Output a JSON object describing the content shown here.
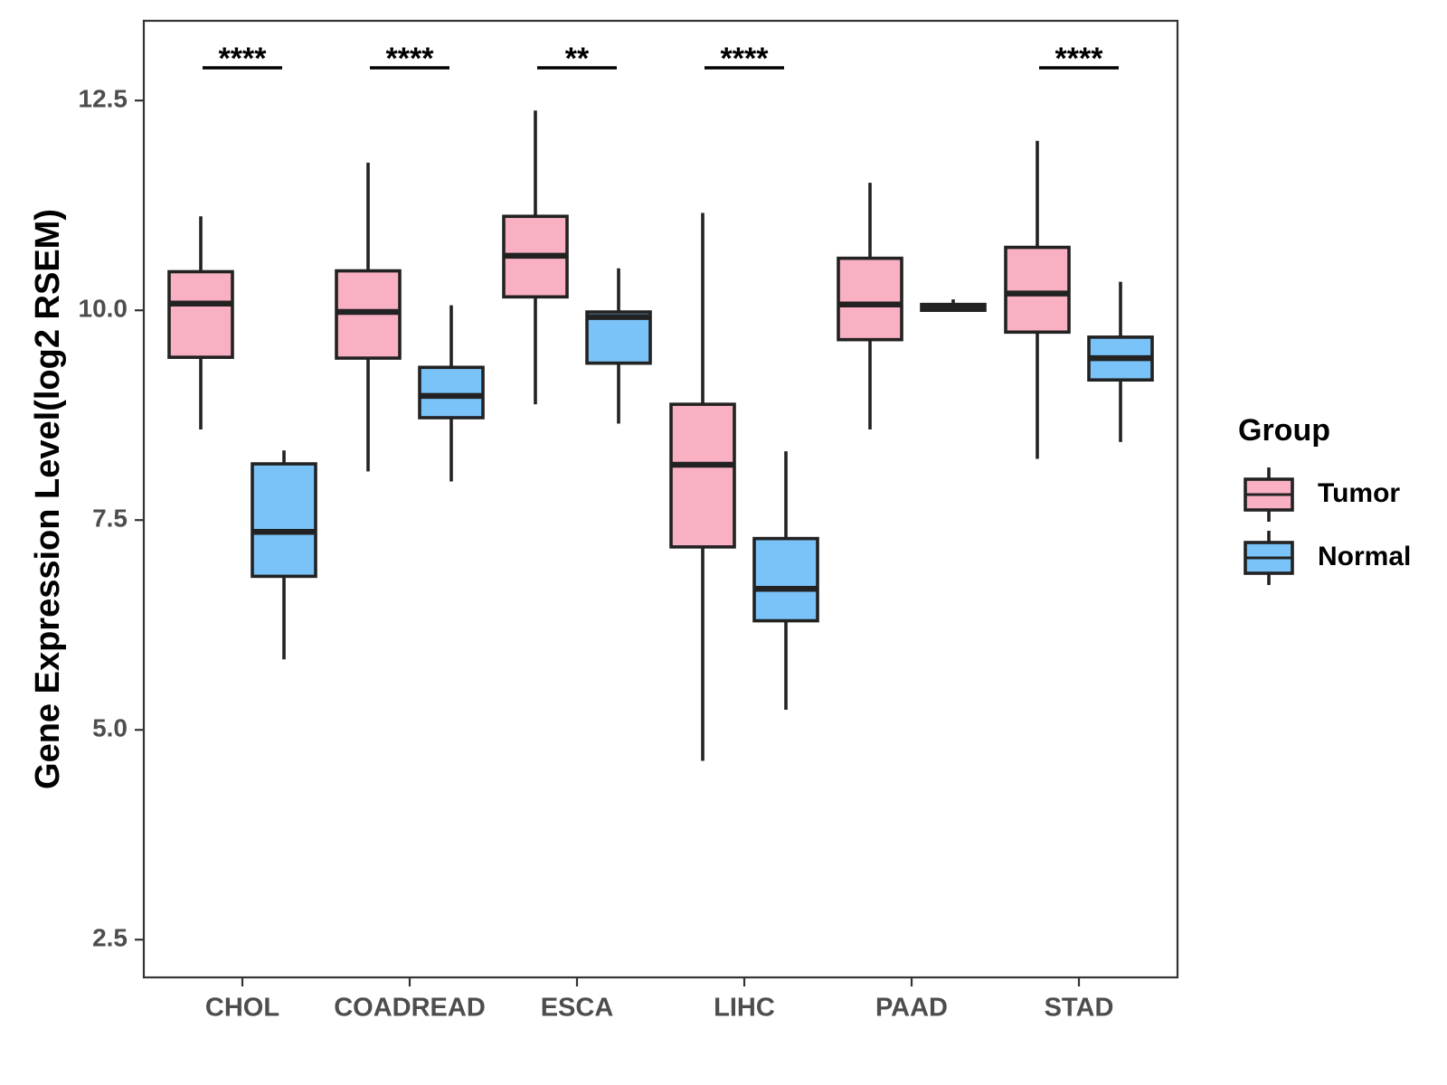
{
  "chart_data": {
    "type": "boxplot",
    "title": "",
    "xlabel": "",
    "ylabel": "Gene Expression Level(log2 RSEM)",
    "ylim": [
      2.05,
      13.45
    ],
    "yticks": [
      2.5,
      5.0,
      7.5,
      10.0,
      12.5
    ],
    "ytick_labels": [
      "2.5",
      "5.0",
      "7.5",
      "10.0",
      "12.5"
    ],
    "categories": [
      "CHOL",
      "COADREAD",
      "ESCA",
      "LIHC",
      "PAAD",
      "STAD"
    ],
    "series": [
      {
        "name": "Tumor",
        "color": "#f9b0c3",
        "boxes": [
          {
            "min": 8.58,
            "q1": 9.44,
            "median": 10.08,
            "q3": 10.46,
            "max": 11.12
          },
          {
            "min": 8.08,
            "q1": 9.43,
            "median": 9.98,
            "q3": 10.47,
            "max": 11.76
          },
          {
            "min": 8.88,
            "q1": 10.16,
            "median": 10.65,
            "q3": 11.12,
            "max": 12.38
          },
          {
            "min": 4.63,
            "q1": 7.18,
            "median": 8.16,
            "q3": 8.88,
            "max": 11.16
          },
          {
            "min": 8.58,
            "q1": 9.65,
            "median": 10.07,
            "q3": 10.62,
            "max": 11.52
          },
          {
            "min": 8.23,
            "q1": 9.74,
            "median": 10.2,
            "q3": 10.75,
            "max": 12.02
          }
        ]
      },
      {
        "name": "Normal",
        "color": "#7ac3f8",
        "boxes": [
          {
            "min": 5.84,
            "q1": 6.83,
            "median": 7.36,
            "q3": 8.17,
            "max": 8.33
          },
          {
            "min": 7.96,
            "q1": 8.72,
            "median": 8.98,
            "q3": 9.32,
            "max": 10.06
          },
          {
            "min": 8.65,
            "q1": 9.37,
            "median": 9.92,
            "q3": 9.98,
            "max": 10.5
          },
          {
            "min": 5.24,
            "q1": 6.3,
            "median": 6.68,
            "q3": 7.28,
            "max": 8.32
          },
          {
            "min": 10.0,
            "q1": 10.0,
            "median": 10.05,
            "q3": 10.07,
            "max": 10.13
          },
          {
            "min": 8.43,
            "q1": 9.17,
            "median": 9.43,
            "q3": 9.68,
            "max": 10.34
          }
        ]
      }
    ],
    "significance": [
      {
        "category": "CHOL",
        "label": "****"
      },
      {
        "category": "COADREAD",
        "label": "****"
      },
      {
        "category": "ESCA",
        "label": "**"
      },
      {
        "category": "LIHC",
        "label": "****"
      },
      {
        "category": "STAD",
        "label": "****"
      }
    ],
    "legend": {
      "title": "Group",
      "position": "right",
      "items": [
        "Tumor",
        "Normal"
      ]
    }
  }
}
